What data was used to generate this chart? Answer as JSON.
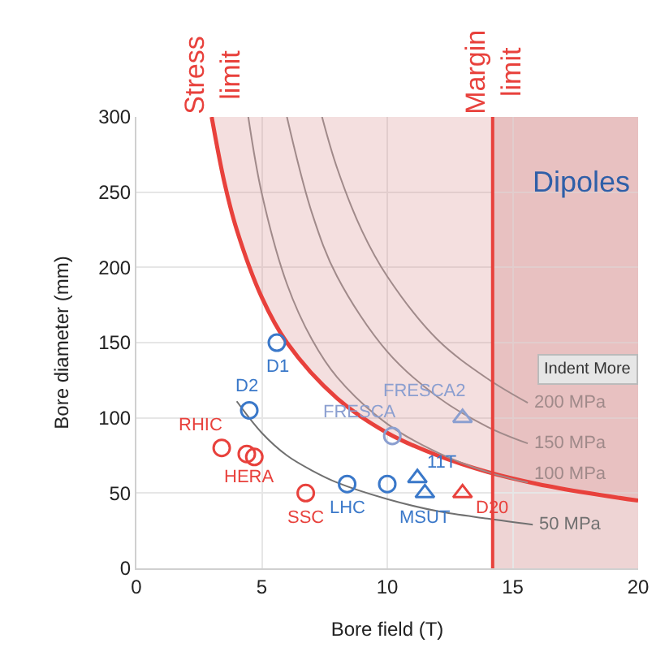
{
  "chart_data": {
    "type": "scatter",
    "xlabel": "Bore field (T)",
    "ylabel": "Bore diameter (mm)",
    "xlim": [
      0,
      20
    ],
    "ylim": [
      0,
      300
    ],
    "xticks": [
      0,
      5,
      10,
      15,
      20
    ],
    "yticks": [
      0,
      50,
      100,
      150,
      200,
      250,
      300
    ],
    "grid": true,
    "annotations": [
      "Dipoles",
      "Indent More",
      {
        "text": "RHIC",
        "x": 3.4,
        "y": 80
      },
      {
        "text": "HERA",
        "x": 4.4,
        "y": 76
      },
      {
        "text": "SSC",
        "x": 6.75,
        "y": 50
      },
      {
        "text": "D20",
        "x": 13,
        "y": 50
      },
      {
        "text": "D1",
        "x": 5.6,
        "y": 150
      },
      {
        "text": "D2",
        "x": 4.5,
        "y": 105
      },
      {
        "text": "LHC",
        "x": 8.4,
        "y": 56
      },
      {
        "text": "FRESCA",
        "x": 10.2,
        "y": 88
      },
      {
        "text": "11T",
        "x": 11.2,
        "y": 60
      },
      {
        "text": "MSUT",
        "x": 11.5,
        "y": 50
      },
      {
        "text": "FRESCA2",
        "x": 13,
        "y": 100
      }
    ],
    "ref_lines": [
      {
        "axis": "x",
        "value": 14.2,
        "label": "Margin\nlimit",
        "color": "#e8413c"
      }
    ],
    "bands": [
      {
        "axis": "x",
        "from": 14.2,
        "to": 20,
        "color": "#d9a0a0"
      }
    ],
    "series": [
      {
        "type": "line",
        "name": "Stress\nlimit",
        "color": "#e8413c",
        "marker": "none",
        "x": [
          3,
          3.5,
          4,
          5,
          6,
          8,
          10,
          12,
          14,
          16,
          18,
          20
        ],
        "values": [
          300,
          257,
          225,
          180,
          150,
          113,
          90,
          75,
          64,
          56,
          50,
          45
        ],
        "lower": [
          300,
          257,
          225,
          180,
          150,
          113,
          90,
          75,
          64,
          56,
          50,
          45
        ],
        "upper": [
          300,
          300,
          300,
          300,
          300,
          300,
          300,
          300,
          300,
          300,
          300,
          300
        ]
      },
      {
        "type": "line",
        "name": "50 MPa",
        "color": "#707070",
        "marker": "none",
        "x": [
          4,
          5,
          6,
          7,
          8,
          10,
          12,
          14,
          15.8
        ],
        "values": [
          111,
          90,
          75,
          65,
          57,
          46,
          38,
          33,
          29
        ]
      },
      {
        "type": "line",
        "name": "100 MPa",
        "color": "#a08a8a",
        "marker": "none",
        "x": [
          4.46,
          5,
          6,
          7,
          8,
          10,
          12,
          14,
          15.6
        ],
        "values": [
          300,
          249,
          189,
          152,
          127,
          96,
          77,
          64,
          57
        ]
      },
      {
        "type": "line",
        "name": "150 MPa",
        "color": "#a08a8a",
        "marker": "none",
        "x": [
          6,
          7,
          8,
          10,
          12,
          14,
          15.6
        ],
        "values": [
          300,
          236,
          194,
          144,
          114,
          94,
          83
        ]
      },
      {
        "type": "line",
        "name": "200 MPa",
        "color": "#a08a8a",
        "marker": "none",
        "x": [
          7.4,
          8,
          9,
          10,
          12,
          14,
          15.6
        ],
        "values": [
          300,
          266,
          224,
          194,
          152,
          126,
          110
        ]
      },
      {
        "color": "#e8413c",
        "marker": "circle",
        "x": [
          3.4,
          4.4,
          4.7,
          6.75
        ],
        "values": [
          80,
          76,
          74,
          50
        ]
      },
      {
        "color": "#e8413c",
        "marker": "triangle",
        "x": [
          13
        ],
        "values": [
          50
        ]
      },
      {
        "color": "#3a78c9",
        "marker": "circle",
        "x": [
          5.6,
          4.5,
          8.4,
          10
        ],
        "values": [
          150,
          105,
          56,
          56
        ]
      },
      {
        "color": "#8b9fd0",
        "marker": "circle",
        "x": [
          10.2
        ],
        "values": [
          88
        ]
      },
      {
        "color": "#3a78c9",
        "marker": "triangle",
        "x": [
          11.2,
          11.5
        ],
        "values": [
          60,
          50
        ]
      },
      {
        "color": "#8b9fd0",
        "marker": "triangle",
        "x": [
          13
        ],
        "values": [
          100
        ]
      }
    ]
  }
}
